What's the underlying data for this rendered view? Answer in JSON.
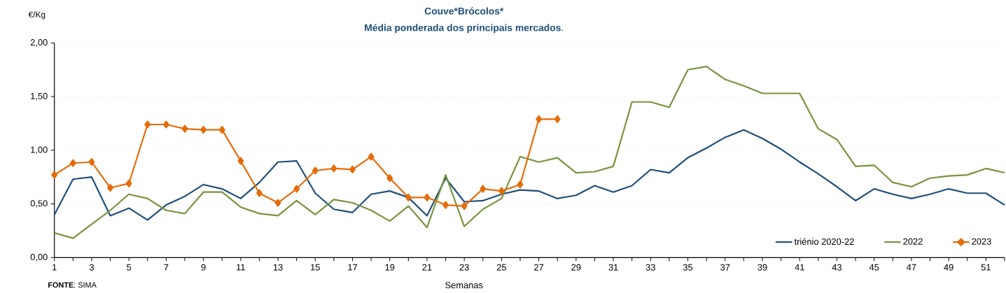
{
  "chart_data": {
    "type": "line",
    "title": "Couve*Brócolos*",
    "subtitle": "**Média ponderada dos principais mercados**.",
    "ylabel": "€/Kg",
    "xlabel": "Semanas",
    "annotations": [
      "**FONTE**: SIMA"
    ],
    "x": [
      1,
      2,
      3,
      4,
      5,
      6,
      7,
      8,
      9,
      10,
      11,
      12,
      13,
      14,
      15,
      16,
      17,
      18,
      19,
      20,
      21,
      22,
      23,
      24,
      25,
      26,
      27,
      28,
      29,
      30,
      31,
      32,
      33,
      34,
      35,
      36,
      37,
      38,
      39,
      40,
      41,
      42,
      43,
      44,
      45,
      46,
      47,
      48,
      49,
      50,
      51,
      52
    ],
    "xlim": [
      1,
      52
    ],
    "xticks": [
      1,
      {
        "value": 2,
        "label": null
      },
      3,
      {
        "value": 4,
        "label": null
      },
      5,
      {
        "value": 6,
        "label": null
      },
      7,
      {
        "value": 8,
        "label": null
      },
      9,
      {
        "value": 10,
        "label": null
      },
      11,
      {
        "value": 12,
        "label": null
      },
      13,
      {
        "value": 14,
        "label": null
      },
      15,
      {
        "value": 16,
        "label": null
      },
      17,
      {
        "value": 18,
        "label": null
      },
      19,
      {
        "value": 20,
        "label": null
      },
      21,
      {
        "value": 22,
        "label": null
      },
      23,
      {
        "value": 24,
        "label": null
      },
      25,
      {
        "value": 26,
        "label": null
      },
      27,
      {
        "value": 28,
        "label": null
      },
      29,
      {
        "value": 30,
        "label": null
      },
      31,
      {
        "value": 32,
        "label": null
      },
      33,
      {
        "value": 34,
        "label": null
      },
      35,
      {
        "value": 36,
        "label": null
      },
      37,
      {
        "value": 38,
        "label": null
      },
      39,
      {
        "value": 40,
        "label": null
      },
      41,
      {
        "value": 42,
        "label": null
      },
      43,
      {
        "value": 44,
        "label": null
      },
      45,
      {
        "value": 46,
        "label": null
      },
      47,
      {
        "value": 48,
        "label": null
      },
      49,
      {
        "value": 50,
        "label": null
      },
      51,
      {
        "value": 52,
        "label": null
      }
    ],
    "ylim": [
      0,
      2
    ],
    "yticks": [
      {
        "value": 0,
        "label": "0,00"
      },
      {
        "value": 0.5,
        "label": "0,50"
      },
      {
        "value": 1,
        "label": "1,00"
      },
      {
        "value": 1.5,
        "label": "1,50"
      },
      {
        "value": 2,
        "label": "2,00"
      }
    ],
    "grid": "y",
    "legend": "bottom right",
    "series": [
      {
        "name": "triénio 2020-22",
        "color": "#1f4e79",
        "values": [
          0.4,
          0.73,
          0.75,
          0.39,
          0.46,
          0.35,
          0.49,
          0.57,
          0.68,
          0.64,
          0.55,
          0.7,
          0.89,
          0.9,
          0.6,
          0.45,
          0.42,
          0.59,
          0.62,
          0.56,
          0.39,
          0.74,
          0.52,
          0.53,
          0.59,
          0.63,
          0.62,
          0.55,
          0.58,
          0.67,
          0.61,
          0.67,
          0.82,
          0.79,
          0.93,
          1.02,
          1.12,
          1.19,
          1.11,
          1.01,
          0.89,
          0.78,
          0.66,
          0.53,
          0.64,
          0.59,
          0.55,
          0.59,
          0.64,
          0.6,
          0.6,
          0.49
        ]
      },
      {
        "name": "2022",
        "color": "#77933c",
        "values": [
          0.23,
          0.18,
          0.31,
          0.44,
          0.59,
          0.55,
          0.44,
          0.41,
          0.61,
          0.61,
          0.47,
          0.41,
          0.39,
          0.53,
          0.4,
          0.54,
          0.51,
          0.44,
          0.34,
          0.48,
          0.28,
          0.77,
          0.29,
          0.45,
          0.55,
          0.94,
          0.89,
          0.93,
          0.79,
          0.8,
          0.85,
          1.45,
          1.45,
          1.4,
          1.75,
          1.78,
          1.66,
          1.6,
          1.53,
          1.53,
          1.53,
          1.2,
          1.1,
          0.85,
          0.86,
          0.7,
          0.66,
          0.74,
          0.76,
          0.77,
          0.83,
          0.79
        ]
      },
      {
        "name": "2023",
        "color": "#e46c0a",
        "marker": "diamond",
        "values": [
          0.77,
          0.88,
          0.89,
          0.65,
          0.69,
          1.24,
          1.24,
          1.2,
          1.19,
          1.19,
          0.9,
          0.6,
          0.51,
          0.64,
          0.81,
          0.83,
          0.82,
          0.94,
          0.74,
          0.56,
          0.56,
          0.49,
          0.48,
          0.64,
          0.62,
          0.68,
          1.29,
          1.29,
          null,
          null,
          null,
          null,
          null,
          null,
          null,
          null,
          null,
          null,
          null,
          null,
          null,
          null,
          null,
          null,
          null,
          null,
          null,
          null,
          null,
          null,
          null,
          null
        ]
      }
    ]
  }
}
